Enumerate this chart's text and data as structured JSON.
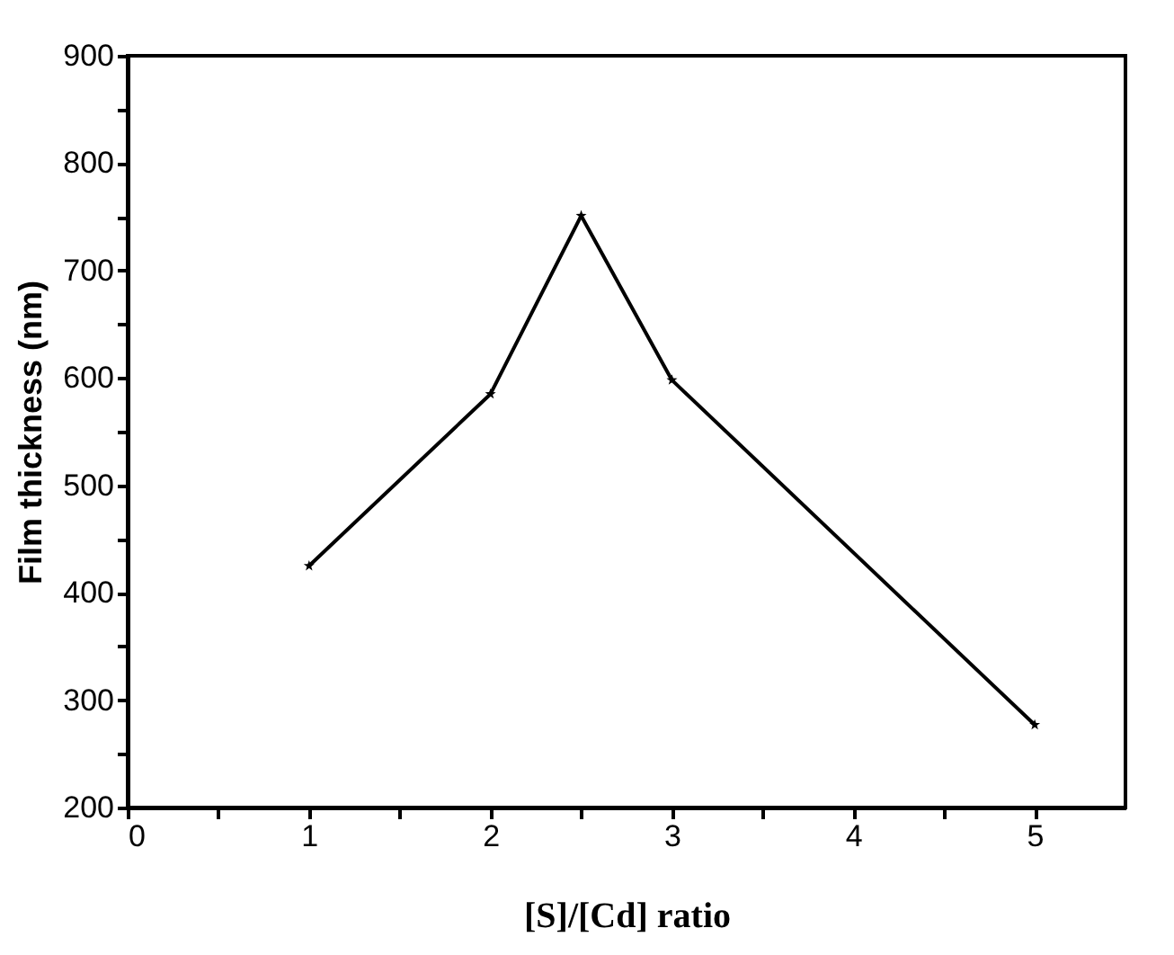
{
  "chart_data": {
    "type": "line",
    "xlabel": "[S]/[Cd] ratio",
    "ylabel": "Film thickness (nm)",
    "x": [
      1,
      2,
      2.5,
      3,
      5
    ],
    "series": [
      {
        "color": "#000000",
        "values": [
          425,
          585,
          751,
          598,
          277
        ]
      }
    ],
    "xlim": [
      0,
      5.5
    ],
    "xticks": [
      0,
      {
        "value": 0.5,
        "label": null
      },
      1,
      {
        "value": 1.5,
        "label": null
      },
      2,
      {
        "value": 2.5,
        "label": null
      },
      3,
      {
        "value": 3.5,
        "label": null
      },
      4,
      {
        "value": 4.5,
        "label": null
      },
      5
    ],
    "ylim": [
      200,
      900
    ],
    "yticks": [
      200,
      {
        "value": 250,
        "label": null
      },
      300,
      {
        "value": 350,
        "label": null
      },
      400,
      {
        "value": 450,
        "label": null
      },
      500,
      {
        "value": 550,
        "label": null
      },
      600,
      {
        "value": 650,
        "label": null
      },
      700,
      {
        "value": 750,
        "label": null
      },
      800,
      {
        "value": 850,
        "label": null
      },
      900
    ],
    "marker": "star",
    "line_style": "solid",
    "grid": false
  }
}
